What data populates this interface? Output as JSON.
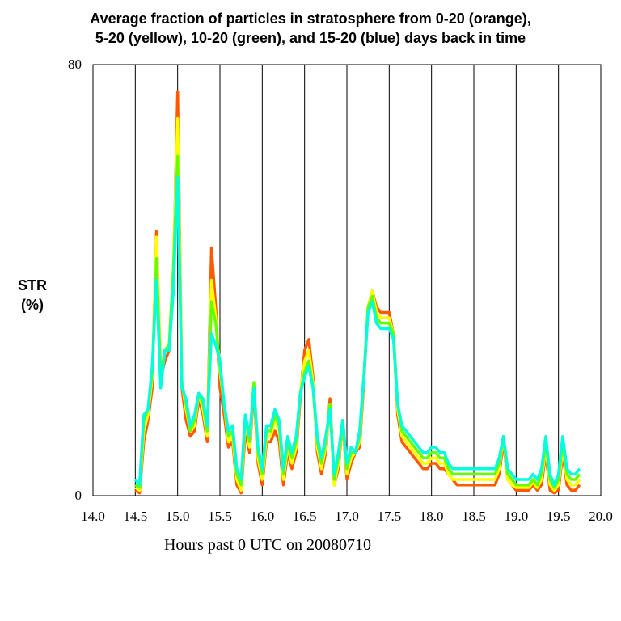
{
  "title_line1": "Average fraction of particles in stratosphere from 0-20 (orange),",
  "title_line2": "5-20 (yellow), 10-20 (green), and 15-20 (blue) days back in time",
  "ylabel_line1": "STR",
  "ylabel_line2": "(%)",
  "xlabel": "Hours past 0 UTC on 20080710",
  "chart_data": {
    "type": "line",
    "title": "Average fraction of particles in stratosphere from 0-20 (orange), 5-20 (yellow), 10-20 (green), and 15-20 (blue) days back in time",
    "xlabel": "Hours past 0 UTC on 20080710",
    "ylabel": "STR (%)",
    "xlim": [
      14.0,
      20.0
    ],
    "ylim": [
      0,
      80
    ],
    "x_ticks": [
      "14.0",
      "14.5",
      "15.0",
      "15.5",
      "16.0",
      "16.5",
      "17.0",
      "17.5",
      "18.0",
      "18.5",
      "19.0",
      "19.5",
      "20.0"
    ],
    "y_ticks": [
      "0",
      "80"
    ],
    "vertical_gridlines": [
      14.5,
      15.0,
      15.5,
      16.0,
      16.5,
      17.0,
      17.5,
      18.0,
      18.5,
      19.0,
      19.5
    ],
    "x": [
      14.5,
      14.55,
      14.6,
      14.65,
      14.7,
      14.75,
      14.8,
      14.85,
      14.9,
      14.95,
      15.0,
      15.05,
      15.1,
      15.15,
      15.2,
      15.25,
      15.3,
      15.35,
      15.4,
      15.45,
      15.5,
      15.55,
      15.6,
      15.65,
      15.7,
      15.75,
      15.8,
      15.85,
      15.9,
      15.95,
      16.0,
      16.05,
      16.1,
      16.15,
      16.2,
      16.25,
      16.3,
      16.35,
      16.4,
      16.45,
      16.5,
      16.55,
      16.6,
      16.65,
      16.7,
      16.75,
      16.8,
      16.85,
      16.9,
      16.95,
      17.0,
      17.05,
      17.1,
      17.15,
      17.2,
      17.25,
      17.3,
      17.35,
      17.4,
      17.45,
      17.5,
      17.55,
      17.6,
      17.65,
      17.7,
      17.75,
      17.8,
      17.85,
      17.9,
      17.95,
      18.0,
      18.05,
      18.1,
      18.15,
      18.2,
      18.25,
      18.3,
      18.35,
      18.4,
      18.45,
      18.5,
      18.55,
      18.6,
      18.65,
      18.7,
      18.75,
      18.8,
      18.85,
      18.9,
      18.95,
      19.0,
      19.05,
      19.1,
      19.15,
      19.2,
      19.25,
      19.3,
      19.35,
      19.4,
      19.45,
      19.5,
      19.55,
      19.6,
      19.65,
      19.7,
      19.75
    ],
    "series": [
      {
        "name": "0-20 days",
        "color": "#ff5a00",
        "values": [
          1,
          0.5,
          10,
          14,
          20,
          49,
          22,
          25,
          27,
          40,
          75,
          20,
          14,
          11,
          12,
          18,
          15,
          10,
          46,
          35,
          20,
          15,
          9,
          10,
          2,
          0.5,
          12,
          8,
          20,
          6,
          2,
          10,
          10,
          12,
          10,
          2,
          8,
          5,
          8,
          18,
          27,
          29,
          22,
          8,
          4,
          8,
          18,
          2,
          5,
          14,
          3,
          6,
          8,
          9,
          21,
          35,
          38,
          35,
          34,
          34,
          34,
          30,
          15,
          10,
          9,
          8,
          7,
          6,
          5,
          5,
          6,
          6,
          5,
          5,
          4,
          3,
          2,
          2,
          2,
          2,
          2,
          2,
          2,
          2,
          2,
          2,
          4,
          10,
          3,
          2,
          1,
          1,
          1,
          1,
          2,
          1,
          2,
          8,
          1,
          0.5,
          1,
          8,
          2,
          1,
          1,
          2
        ]
      },
      {
        "name": "5-20 days",
        "color": "#ffff00",
        "values": [
          1.5,
          1,
          12,
          15,
          22,
          48,
          23,
          27,
          28,
          42,
          70,
          21,
          16,
          12,
          13,
          19,
          16,
          11,
          40,
          33,
          23,
          17,
          10,
          11,
          3,
          1,
          14,
          9,
          21,
          7,
          3,
          11,
          11,
          14,
          12,
          3,
          9,
          6,
          9,
          19,
          25,
          27,
          21,
          9,
          5,
          9,
          17,
          2,
          6,
          14,
          4,
          7,
          8,
          10,
          22,
          35,
          38,
          34,
          33,
          33,
          33,
          30,
          16,
          11,
          10,
          9,
          8,
          7,
          6,
          6,
          7,
          7,
          6,
          6,
          4,
          3,
          3,
          3,
          3,
          3,
          3,
          3,
          3,
          3,
          3,
          3,
          5,
          11,
          3,
          2,
          1.5,
          1.5,
          1.5,
          1.5,
          2.5,
          1.5,
          3,
          9,
          2,
          1,
          2,
          9,
          3,
          2,
          2,
          3
        ]
      },
      {
        "name": "10-20 days",
        "color": "#66ff00",
        "values": [
          2,
          1.5,
          14,
          16,
          23,
          44,
          22,
          27,
          28,
          42,
          63,
          21,
          17,
          12,
          14,
          19,
          17,
          12,
          36,
          32,
          24,
          17,
          11,
          12,
          4,
          2,
          15,
          10,
          21,
          8,
          4,
          12,
          12,
          15,
          13,
          4,
          10,
          7,
          10,
          19,
          23,
          25,
          20,
          10,
          6,
          10,
          17,
          3,
          7,
          14,
          5,
          8,
          8,
          11,
          22,
          35,
          37,
          33,
          32,
          32,
          32,
          30,
          17,
          12,
          11,
          10,
          9,
          8,
          7,
          7,
          8,
          8,
          7,
          7,
          5,
          4,
          4,
          4,
          4,
          4,
          4,
          4,
          4,
          4,
          4,
          4,
          6,
          11,
          4,
          3,
          2,
          2,
          2,
          2,
          3,
          2,
          4,
          10,
          3,
          1.5,
          3,
          10,
          4,
          3,
          3,
          4
        ]
      },
      {
        "name": "15-20 days",
        "color": "#00ffdd",
        "values": [
          3,
          2,
          15,
          16,
          24,
          40,
          20,
          27,
          27,
          38,
          59,
          20,
          18,
          13,
          15,
          19,
          18,
          13,
          30,
          28,
          25,
          17,
          12,
          13,
          5,
          3,
          15,
          11,
          20,
          9,
          5,
          13,
          13,
          16,
          14,
          5,
          11,
          8,
          11,
          19,
          22,
          24,
          20,
          11,
          7,
          11,
          16,
          4,
          8,
          14,
          6,
          9,
          8,
          12,
          22,
          34,
          36,
          32,
          31,
          31,
          31,
          29,
          17,
          13,
          12,
          11,
          10,
          9,
          8,
          8,
          9,
          9,
          8,
          8,
          6,
          5,
          5,
          5,
          5,
          5,
          5,
          5,
          5,
          5,
          5,
          5,
          7,
          11,
          5,
          4,
          3,
          3,
          3,
          3,
          4,
          3,
          5,
          11,
          4,
          2,
          4,
          11,
          5,
          4,
          4,
          5
        ]
      }
    ]
  }
}
